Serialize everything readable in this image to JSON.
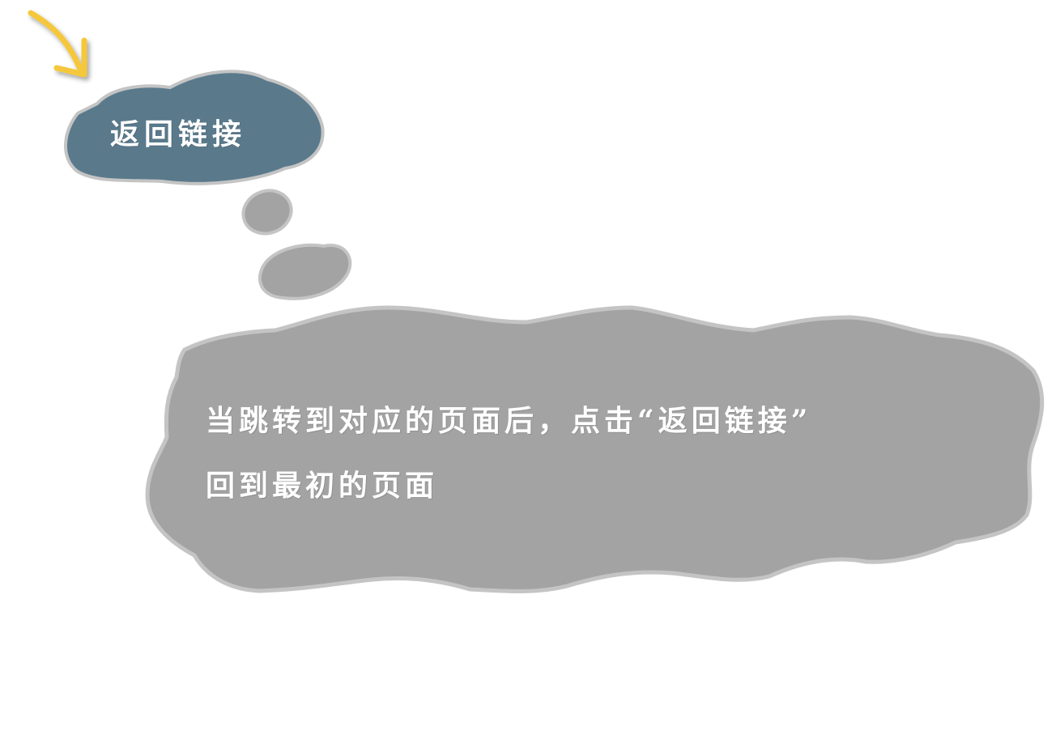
{
  "title_bubble": {
    "label": "返回链接"
  },
  "description_bubble": {
    "line1": "当跳转到对应的页面后，点击“返回链接”",
    "line2": "回到最初的页面"
  },
  "colors": {
    "title_fill": "#5a7a8c",
    "bubble_fill": "#a3a3a3",
    "bubble_outline": "#c4c4c4",
    "arrow": "#f5c73a",
    "text": "#ffffff"
  },
  "icons": {
    "pointer": "curved-arrow-icon"
  }
}
